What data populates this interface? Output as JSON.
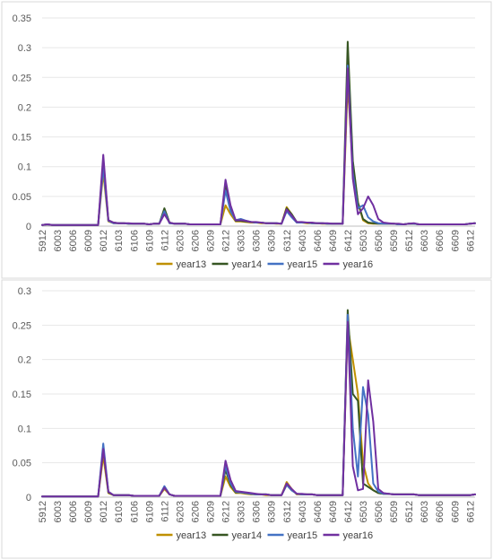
{
  "chart_data": [
    {
      "type": "line",
      "title": "",
      "xlabel": "",
      "ylabel": "",
      "ylim": [
        0,
        0.35
      ],
      "yticks": [
        "0",
        "0.05",
        "0.1",
        "0.15",
        "0.2",
        "0.25",
        "0.3",
        "0.35"
      ],
      "x": [
        "5912",
        "6001",
        "6002",
        "6003",
        "6004",
        "6005",
        "6006",
        "6007",
        "6008",
        "6009",
        "6010",
        "6011",
        "6012",
        "6101",
        "6102",
        "6103",
        "6104",
        "6105",
        "6106",
        "6107",
        "6108",
        "6109",
        "6110",
        "6111",
        "6112",
        "6201",
        "6202",
        "6203",
        "6204",
        "6205",
        "6206",
        "6207",
        "6208",
        "6209",
        "6210",
        "6211",
        "6212",
        "6301",
        "6302",
        "6303",
        "6304",
        "6305",
        "6306",
        "6307",
        "6308",
        "6309",
        "6310",
        "6311",
        "6312",
        "6401",
        "6402",
        "6403",
        "6404",
        "6405",
        "6406",
        "6407",
        "6408",
        "6409",
        "6410",
        "6411",
        "6412",
        "6501",
        "6502",
        "6503",
        "6504",
        "6505",
        "6506",
        "6507",
        "6508",
        "6509",
        "6510",
        "6511",
        "6512",
        "6601",
        "6602",
        "6603",
        "6604",
        "6605",
        "6606",
        "6607",
        "6608",
        "6609",
        "6610",
        "6611",
        "6612",
        "6701"
      ],
      "xticks": [
        "5912",
        "6003",
        "6006",
        "6009",
        "6012",
        "6103",
        "6106",
        "6109",
        "6112",
        "6203",
        "6206",
        "6209",
        "6212",
        "6303",
        "6306",
        "6309",
        "6312",
        "6403",
        "6406",
        "6409",
        "6412",
        "6503",
        "6506",
        "6509",
        "6512",
        "6603",
        "6606",
        "6609",
        "6612"
      ],
      "series": [
        {
          "name": "year13",
          "color": "#BF9000",
          "values": [
            0.002,
            0.003,
            0.002,
            0.002,
            0.002,
            0.002,
            0.002,
            0.002,
            0.002,
            0.002,
            0.002,
            0.002,
            0.09,
            0.008,
            0.005,
            0.005,
            0.005,
            0.004,
            0.004,
            0.004,
            0.004,
            0.003,
            0.004,
            0.004,
            0.025,
            0.005,
            0.004,
            0.004,
            0.004,
            0.003,
            0.003,
            0.003,
            0.003,
            0.003,
            0.003,
            0.003,
            0.035,
            0.02,
            0.008,
            0.008,
            0.007,
            0.006,
            0.006,
            0.005,
            0.005,
            0.005,
            0.004,
            0.004,
            0.032,
            0.02,
            0.006,
            0.006,
            0.005,
            0.005,
            0.005,
            0.004,
            0.004,
            0.004,
            0.004,
            0.004,
            0.24,
            0.1,
            0.04,
            0.01,
            0.005,
            0.004,
            0.004,
            0.004,
            0.004,
            0.004,
            0.003,
            0.003,
            0.004,
            0.004,
            0.003,
            0.003,
            0.003,
            0.003,
            0.003,
            0.003,
            0.003,
            0.003,
            0.003,
            0.003,
            0.004,
            0.005
          ]
        },
        {
          "name": "year14",
          "color": "#375623",
          "values": [
            0.002,
            0.003,
            0.002,
            0.002,
            0.002,
            0.002,
            0.002,
            0.002,
            0.002,
            0.002,
            0.002,
            0.002,
            0.11,
            0.01,
            0.006,
            0.005,
            0.005,
            0.004,
            0.004,
            0.004,
            0.004,
            0.003,
            0.004,
            0.004,
            0.03,
            0.006,
            0.004,
            0.004,
            0.004,
            0.003,
            0.003,
            0.003,
            0.003,
            0.003,
            0.003,
            0.003,
            0.07,
            0.03,
            0.009,
            0.009,
            0.008,
            0.007,
            0.006,
            0.006,
            0.005,
            0.005,
            0.005,
            0.004,
            0.03,
            0.02,
            0.007,
            0.006,
            0.006,
            0.005,
            0.005,
            0.005,
            0.004,
            0.004,
            0.004,
            0.004,
            0.31,
            0.11,
            0.04,
            0.012,
            0.006,
            0.005,
            0.004,
            0.004,
            0.004,
            0.004,
            0.003,
            0.003,
            0.004,
            0.004,
            0.003,
            0.003,
            0.003,
            0.003,
            0.003,
            0.003,
            0.003,
            0.003,
            0.003,
            0.003,
            0.004,
            0.005
          ]
        },
        {
          "name": "year15",
          "color": "#4472C4",
          "values": [
            0.002,
            0.003,
            0.002,
            0.002,
            0.002,
            0.002,
            0.002,
            0.002,
            0.002,
            0.002,
            0.002,
            0.002,
            0.1,
            0.009,
            0.005,
            0.005,
            0.005,
            0.004,
            0.004,
            0.004,
            0.004,
            0.003,
            0.004,
            0.004,
            0.025,
            0.005,
            0.004,
            0.004,
            0.004,
            0.003,
            0.003,
            0.003,
            0.003,
            0.003,
            0.003,
            0.003,
            0.06,
            0.025,
            0.01,
            0.012,
            0.009,
            0.007,
            0.006,
            0.006,
            0.005,
            0.005,
            0.005,
            0.004,
            0.025,
            0.015,
            0.006,
            0.006,
            0.006,
            0.005,
            0.005,
            0.005,
            0.004,
            0.004,
            0.004,
            0.004,
            0.27,
            0.09,
            0.03,
            0.035,
            0.015,
            0.008,
            0.005,
            0.004,
            0.004,
            0.004,
            0.003,
            0.003,
            0.004,
            0.004,
            0.003,
            0.003,
            0.003,
            0.003,
            0.003,
            0.003,
            0.003,
            0.003,
            0.003,
            0.003,
            0.004,
            0.005
          ]
        },
        {
          "name": "year16",
          "color": "#7030A0",
          "values": [
            0.002,
            0.003,
            0.002,
            0.002,
            0.002,
            0.002,
            0.002,
            0.002,
            0.002,
            0.002,
            0.002,
            0.002,
            0.12,
            0.01,
            0.006,
            0.005,
            0.005,
            0.005,
            0.004,
            0.004,
            0.004,
            0.003,
            0.004,
            0.004,
            0.02,
            0.006,
            0.004,
            0.004,
            0.004,
            0.003,
            0.003,
            0.003,
            0.003,
            0.003,
            0.003,
            0.003,
            0.078,
            0.035,
            0.01,
            0.01,
            0.009,
            0.007,
            0.007,
            0.006,
            0.005,
            0.005,
            0.005,
            0.004,
            0.028,
            0.018,
            0.007,
            0.007,
            0.006,
            0.006,
            0.005,
            0.005,
            0.005,
            0.004,
            0.004,
            0.004,
            0.265,
            0.08,
            0.02,
            0.03,
            0.05,
            0.035,
            0.012,
            0.006,
            0.005,
            0.004,
            0.004,
            0.003,
            0.004,
            0.005,
            0.003,
            0.003,
            0.003,
            0.003,
            0.003,
            0.003,
            0.003,
            0.003,
            0.003,
            0.003,
            0.004,
            0.005
          ]
        }
      ],
      "legend": "bottom"
    },
    {
      "type": "line",
      "title": "",
      "xlabel": "",
      "ylabel": "",
      "ylim": [
        0,
        0.3
      ],
      "yticks": [
        "0",
        "0.05",
        "0.1",
        "0.15",
        "0.2",
        "0.25",
        "0.3"
      ],
      "x": [
        "5912",
        "6001",
        "6002",
        "6003",
        "6004",
        "6005",
        "6006",
        "6007",
        "6008",
        "6009",
        "6010",
        "6011",
        "6012",
        "6101",
        "6102",
        "6103",
        "6104",
        "6105",
        "6106",
        "6107",
        "6108",
        "6109",
        "6110",
        "6111",
        "6112",
        "6201",
        "6202",
        "6203",
        "6204",
        "6205",
        "6206",
        "6207",
        "6208",
        "6209",
        "6210",
        "6211",
        "6212",
        "6301",
        "6302",
        "6303",
        "6304",
        "6305",
        "6306",
        "6307",
        "6308",
        "6309",
        "6310",
        "6311",
        "6312",
        "6401",
        "6402",
        "6403",
        "6404",
        "6405",
        "6406",
        "6407",
        "6408",
        "6409",
        "6410",
        "6411",
        "6412",
        "6501",
        "6502",
        "6503",
        "6504",
        "6505",
        "6506",
        "6507",
        "6508",
        "6509",
        "6510",
        "6511",
        "6512",
        "6601",
        "6602",
        "6603",
        "6604",
        "6605",
        "6606",
        "6607",
        "6608",
        "6609",
        "6610",
        "6611",
        "6612",
        "6701"
      ],
      "xticks": [
        "5912",
        "6003",
        "6006",
        "6009",
        "6012",
        "6103",
        "6106",
        "6109",
        "6112",
        "6203",
        "6206",
        "6209",
        "6212",
        "6303",
        "6306",
        "6309",
        "6312",
        "6403",
        "6406",
        "6409",
        "6412",
        "6503",
        "6506",
        "6509",
        "6512",
        "6603",
        "6606",
        "6609",
        "6612"
      ],
      "series": [
        {
          "name": "year13",
          "color": "#BF9000",
          "values": [
            0.001,
            0.001,
            0.001,
            0.001,
            0.001,
            0.001,
            0.001,
            0.001,
            0.001,
            0.001,
            0.001,
            0.001,
            0.06,
            0.006,
            0.003,
            0.003,
            0.003,
            0.003,
            0.002,
            0.002,
            0.002,
            0.002,
            0.002,
            0.002,
            0.012,
            0.004,
            0.002,
            0.002,
            0.002,
            0.002,
            0.002,
            0.002,
            0.002,
            0.002,
            0.002,
            0.002,
            0.03,
            0.015,
            0.006,
            0.006,
            0.005,
            0.004,
            0.004,
            0.004,
            0.003,
            0.003,
            0.003,
            0.003,
            0.022,
            0.012,
            0.004,
            0.004,
            0.004,
            0.004,
            0.003,
            0.003,
            0.003,
            0.003,
            0.003,
            0.003,
            0.25,
            0.2,
            0.15,
            0.05,
            0.02,
            0.01,
            0.006,
            0.005,
            0.005,
            0.004,
            0.004,
            0.004,
            0.004,
            0.004,
            0.003,
            0.003,
            0.003,
            0.003,
            0.003,
            0.003,
            0.003,
            0.003,
            0.003,
            0.003,
            0.003,
            0.004
          ]
        },
        {
          "name": "year14",
          "color": "#375623",
          "values": [
            0.001,
            0.001,
            0.001,
            0.001,
            0.001,
            0.001,
            0.001,
            0.001,
            0.001,
            0.001,
            0.001,
            0.001,
            0.07,
            0.007,
            0.003,
            0.003,
            0.003,
            0.003,
            0.002,
            0.002,
            0.002,
            0.002,
            0.002,
            0.002,
            0.015,
            0.004,
            0.002,
            0.002,
            0.002,
            0.002,
            0.002,
            0.002,
            0.002,
            0.002,
            0.002,
            0.002,
            0.04,
            0.018,
            0.007,
            0.007,
            0.006,
            0.005,
            0.004,
            0.004,
            0.004,
            0.003,
            0.003,
            0.003,
            0.018,
            0.01,
            0.005,
            0.004,
            0.004,
            0.004,
            0.003,
            0.003,
            0.003,
            0.003,
            0.003,
            0.003,
            0.272,
            0.15,
            0.14,
            0.02,
            0.015,
            0.01,
            0.006,
            0.005,
            0.005,
            0.004,
            0.004,
            0.004,
            0.004,
            0.004,
            0.003,
            0.003,
            0.003,
            0.003,
            0.003,
            0.003,
            0.003,
            0.003,
            0.003,
            0.003,
            0.003,
            0.004
          ]
        },
        {
          "name": "year15",
          "color": "#4472C4",
          "values": [
            0.001,
            0.001,
            0.001,
            0.001,
            0.001,
            0.001,
            0.001,
            0.001,
            0.001,
            0.001,
            0.001,
            0.001,
            0.078,
            0.008,
            0.003,
            0.003,
            0.003,
            0.003,
            0.002,
            0.002,
            0.002,
            0.002,
            0.002,
            0.002,
            0.016,
            0.004,
            0.002,
            0.002,
            0.002,
            0.002,
            0.002,
            0.002,
            0.002,
            0.002,
            0.002,
            0.002,
            0.045,
            0.02,
            0.008,
            0.007,
            0.006,
            0.005,
            0.004,
            0.004,
            0.004,
            0.003,
            0.003,
            0.003,
            0.018,
            0.01,
            0.005,
            0.004,
            0.004,
            0.004,
            0.003,
            0.003,
            0.003,
            0.003,
            0.003,
            0.003,
            0.265,
            0.1,
            0.03,
            0.16,
            0.12,
            0.02,
            0.008,
            0.005,
            0.005,
            0.004,
            0.004,
            0.004,
            0.004,
            0.004,
            0.003,
            0.003,
            0.003,
            0.003,
            0.003,
            0.003,
            0.003,
            0.003,
            0.003,
            0.003,
            0.003,
            0.004
          ]
        },
        {
          "name": "year16",
          "color": "#7030A0",
          "values": [
            0.001,
            0.001,
            0.001,
            0.001,
            0.001,
            0.001,
            0.001,
            0.001,
            0.001,
            0.001,
            0.001,
            0.001,
            0.07,
            0.008,
            0.003,
            0.003,
            0.003,
            0.003,
            0.002,
            0.002,
            0.002,
            0.002,
            0.002,
            0.002,
            0.014,
            0.004,
            0.002,
            0.002,
            0.002,
            0.002,
            0.002,
            0.002,
            0.002,
            0.002,
            0.002,
            0.002,
            0.053,
            0.025,
            0.009,
            0.008,
            0.007,
            0.006,
            0.005,
            0.004,
            0.004,
            0.003,
            0.003,
            0.003,
            0.02,
            0.012,
            0.005,
            0.005,
            0.004,
            0.004,
            0.003,
            0.003,
            0.003,
            0.003,
            0.003,
            0.003,
            0.255,
            0.045,
            0.01,
            0.012,
            0.17,
            0.11,
            0.012,
            0.006,
            0.005,
            0.004,
            0.004,
            0.004,
            0.004,
            0.004,
            0.003,
            0.003,
            0.003,
            0.003,
            0.003,
            0.003,
            0.003,
            0.003,
            0.003,
            0.003,
            0.003,
            0.004
          ]
        }
      ],
      "legend": "bottom"
    }
  ]
}
